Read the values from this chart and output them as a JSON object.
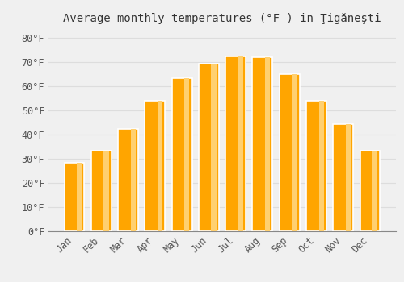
{
  "title": "Average monthly temperatures (°F ) in Ţigăneşti",
  "months": [
    "Jan",
    "Feb",
    "Mar",
    "Apr",
    "May",
    "Jun",
    "Jul",
    "Aug",
    "Sep",
    "Oct",
    "Nov",
    "Dec"
  ],
  "values": [
    28.5,
    33.5,
    42.5,
    54.0,
    63.5,
    69.5,
    72.5,
    72.0,
    65.0,
    54.0,
    44.5,
    33.5
  ],
  "bar_color": "#FFA500",
  "bar_edge_color": "#FFD070",
  "background_color": "#F0F0F0",
  "grid_color": "#DDDDDD",
  "ylim": [
    0,
    84
  ],
  "yticks": [
    0,
    10,
    20,
    30,
    40,
    50,
    60,
    70,
    80
  ],
  "ytick_labels": [
    "0°F",
    "10°F",
    "20°F",
    "30°F",
    "40°F",
    "50°F",
    "60°F",
    "70°F",
    "80°F"
  ],
  "title_fontsize": 10,
  "tick_fontsize": 8.5
}
